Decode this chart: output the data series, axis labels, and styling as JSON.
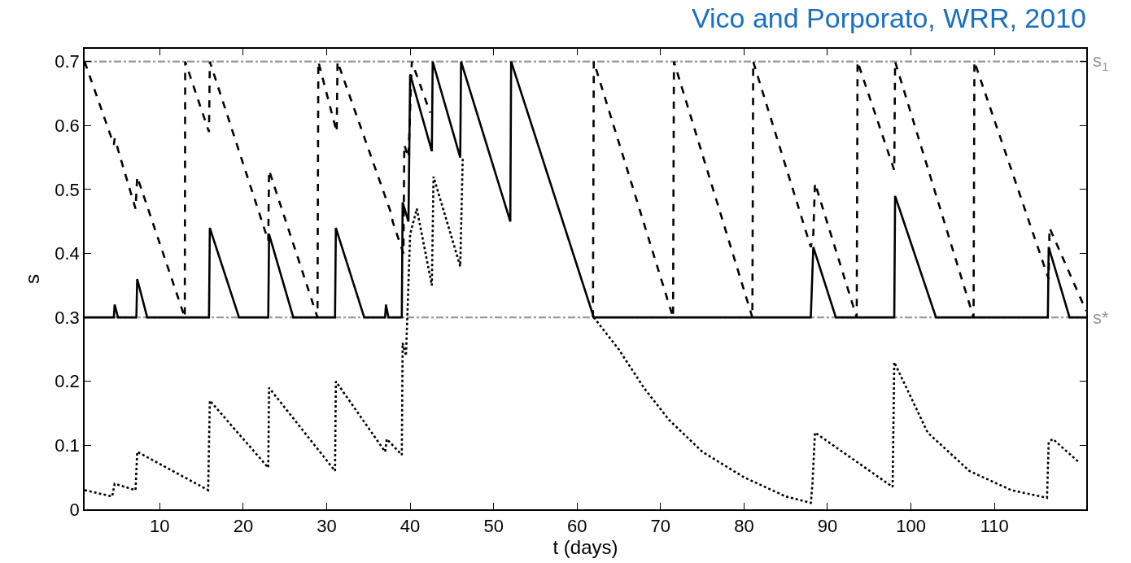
{
  "chart_data": {
    "type": "line",
    "title": "Vico and Porporato, WRR, 2010",
    "xlabel": "t (days)",
    "ylabel": "s",
    "xlim": [
      1,
      121
    ],
    "xticks": [
      10,
      20,
      30,
      40,
      50,
      60,
      70,
      80,
      90,
      100,
      110
    ],
    "ylim": [
      0,
      0.72
    ],
    "yticks": [
      0,
      0.1,
      0.2,
      0.3,
      0.4,
      0.5,
      0.6,
      0.7
    ],
    "grid": false,
    "marker": "none",
    "ref_lines": [
      {
        "axis": "y",
        "value": 0.7,
        "label": "s$_{1}$",
        "color": "#999999",
        "line_style": "dashdot"
      },
      {
        "axis": "y",
        "value": 0.3,
        "label": "s*",
        "color": "#999999",
        "line_style": "dashdot"
      }
    ],
    "series": [
      {
        "color": "#000000",
        "line_style": "dashed",
        "x": [
          1,
          4.5,
          4.6,
          7.1,
          7.3,
          13,
          13.05,
          15.9,
          16,
          23,
          23.1,
          28.9,
          29,
          31.2,
          31.3,
          37.8,
          37.9,
          39.2,
          39.3,
          39.8,
          40.2,
          42.4,
          50,
          61.9,
          62,
          71.5,
          71.6,
          81,
          81.1,
          88,
          88.3,
          88.5,
          93.5,
          93.6,
          98,
          98.1,
          107.5,
          107.6,
          116.5,
          116.6,
          121
        ],
        "values": [
          0.7,
          0.57,
          0.58,
          0.47,
          0.52,
          0.3,
          0.7,
          0.59,
          0.7,
          0.42,
          0.53,
          0.3,
          0.7,
          0.59,
          0.7,
          0.46,
          0.45,
          0.4,
          0.57,
          0.55,
          0.7,
          0.62,
          null,
          0.3,
          0.7,
          0.3,
          0.7,
          0.3,
          0.7,
          0.41,
          0.43,
          0.51,
          0.3,
          0.7,
          0.53,
          0.7,
          0.3,
          0.7,
          0.36,
          0.44,
          0.31
        ]
      },
      {
        "color": "#000000",
        "line_style": "solid",
        "x": [
          1,
          4.5,
          4.6,
          5,
          7.2,
          7.3,
          8.5,
          15.9,
          16,
          19.5,
          23,
          23.1,
          26,
          31,
          31.1,
          34.5,
          37,
          37.1,
          37.4,
          39,
          39.1,
          39.8,
          40,
          42.6,
          42.7,
          46,
          46.1,
          52,
          52.1,
          62,
          88,
          88.3,
          91,
          98,
          98.1,
          103,
          116.4,
          116.5,
          119,
          121
        ],
        "values": [
          0.3,
          0.3,
          0.32,
          0.3,
          0.3,
          0.36,
          0.3,
          0.3,
          0.44,
          0.3,
          0.3,
          0.43,
          0.3,
          0.3,
          0.44,
          0.3,
          0.3,
          0.32,
          0.3,
          0.3,
          0.48,
          0.45,
          0.68,
          0.56,
          0.7,
          0.55,
          0.7,
          0.45,
          0.7,
          0.3,
          0.3,
          0.41,
          0.3,
          0.3,
          0.49,
          0.3,
          0.3,
          0.41,
          0.3,
          0.3
        ]
      },
      {
        "color": "#000000",
        "line_style": "dotted",
        "x": [
          1,
          4.3,
          4.6,
          7.1,
          7.3,
          15.8,
          16,
          23,
          23.1,
          31,
          31.1,
          37,
          37.2,
          39,
          39.1,
          39.5,
          40,
          40.8,
          42.6,
          42.8,
          46,
          46.3,
          50,
          62,
          65,
          68,
          71,
          75,
          80,
          85,
          88,
          88.2,
          88.5,
          97.8,
          98,
          102,
          107,
          112,
          116.3,
          116.5,
          117,
          120
        ],
        "values": [
          0.03,
          0.02,
          0.04,
          0.03,
          0.09,
          0.03,
          0.17,
          0.065,
          0.19,
          0.06,
          0.2,
          0.09,
          0.11,
          0.085,
          0.26,
          0.24,
          0.43,
          0.47,
          0.35,
          0.52,
          0.38,
          0.55,
          null,
          0.3,
          0.25,
          0.19,
          0.14,
          0.09,
          0.05,
          0.02,
          0.01,
          0.04,
          0.12,
          0.035,
          0.23,
          0.12,
          0.06,
          0.03,
          0.018,
          0.105,
          0.11,
          0.075
        ]
      }
    ]
  }
}
